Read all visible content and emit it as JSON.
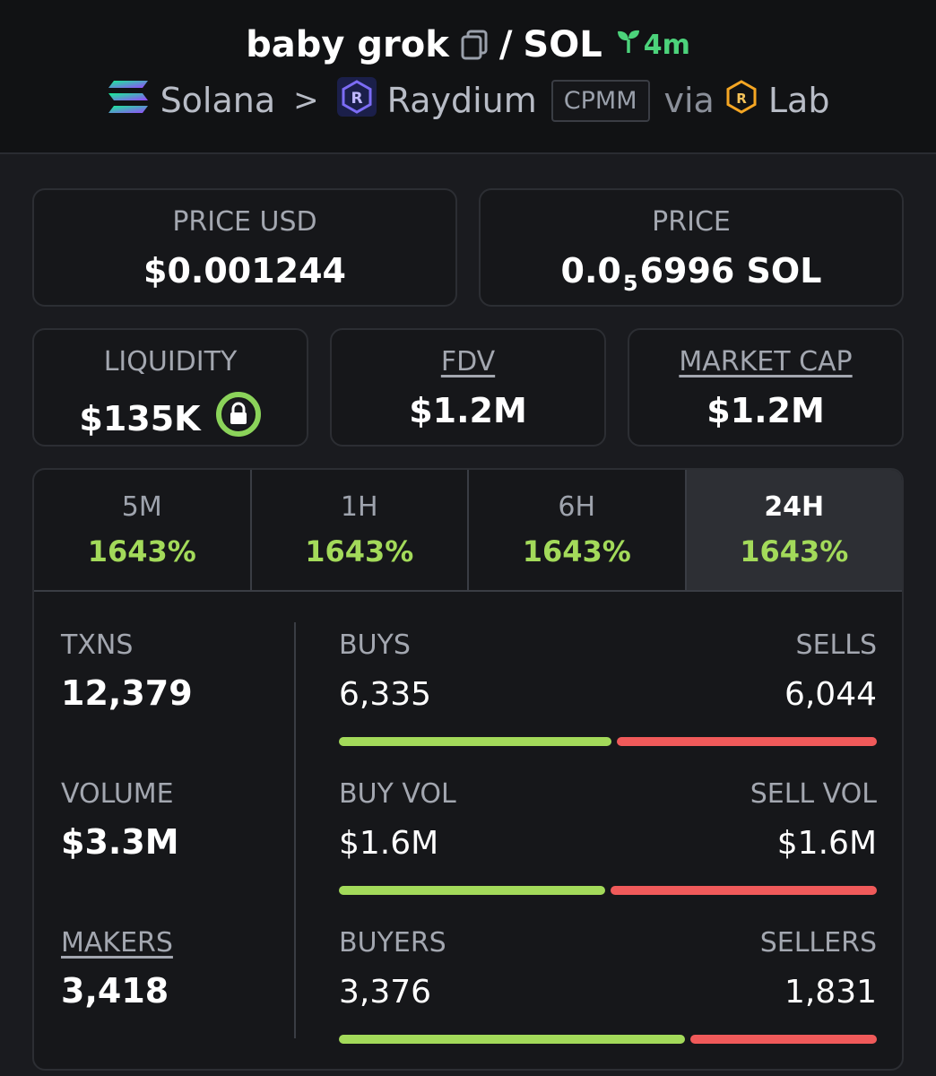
{
  "header": {
    "token_name": "baby grok",
    "separator": "/",
    "quote": "SOL",
    "age": "4m",
    "chain": "Solana",
    "chevron": ">",
    "dex": "Raydium",
    "pool_type": "CPMM",
    "via": "via",
    "launchpad": "Lab",
    "colors": {
      "age": "#4cd37b"
    }
  },
  "cards": {
    "price_usd": {
      "label": "PRICE USD",
      "value": "$0.001244"
    },
    "price": {
      "label": "PRICE",
      "value_prefix": "0.0",
      "subscript": "5",
      "value_suffix": "6996 SOL"
    },
    "liquidity": {
      "label": "LIQUIDITY",
      "value": "$135K",
      "icon": "lock-icon"
    },
    "fdv": {
      "label": "FDV",
      "value": "$1.2M"
    },
    "market_cap": {
      "label": "MARKET CAP",
      "value": "$1.2M"
    }
  },
  "tabs": [
    {
      "label": "5M",
      "pct": "1643%"
    },
    {
      "label": "1H",
      "pct": "1643%"
    },
    {
      "label": "6H",
      "pct": "1643%"
    },
    {
      "label": "24H",
      "pct": "1643%",
      "active": true
    }
  ],
  "stats": {
    "txns": {
      "label": "TXNS",
      "value": "12,379"
    },
    "volume": {
      "label": "VOLUME",
      "value": "$3.3M"
    },
    "makers": {
      "label": "MAKERS",
      "value": "3,418"
    },
    "buys_sells": {
      "left_label": "BUYS",
      "left_value": "6,335",
      "right_label": "SELLS",
      "right_value": "6,044",
      "buy_fraction": 0.512
    },
    "vol": {
      "left_label": "BUY VOL",
      "left_value": "$1.6M",
      "right_label": "SELL VOL",
      "right_value": "$1.6M",
      "buy_fraction": 0.5
    },
    "buyers_sellers": {
      "left_label": "BUYERS",
      "left_value": "3,376",
      "right_label": "SELLERS",
      "right_value": "1,831",
      "buy_fraction": 0.65
    }
  },
  "colors": {
    "up": "#a3da5a",
    "down": "#f05a5a",
    "background": "#1a1b1f"
  }
}
